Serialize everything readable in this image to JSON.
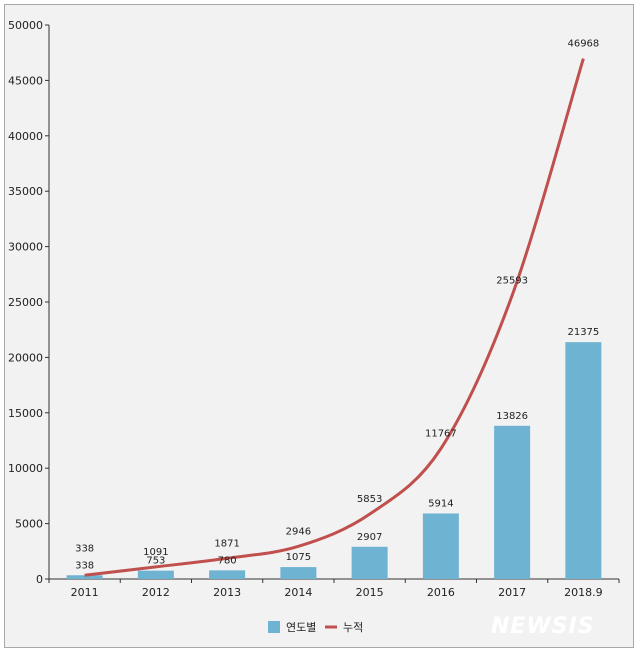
{
  "chart_data": {
    "type": "bar",
    "categories": [
      "2011",
      "2012",
      "2013",
      "2014",
      "2015",
      "2016",
      "2017",
      "2018.9"
    ],
    "series": [
      {
        "name": "연도별",
        "kind": "bar",
        "color": "#6fb3d3",
        "values": [
          338,
          753,
          780,
          1075,
          2907,
          5914,
          13826,
          21375
        ]
      },
      {
        "name": "누적",
        "kind": "line",
        "color": "#c0504d",
        "values": [
          338,
          1091,
          1871,
          2946,
          5853,
          11767,
          25593,
          46968
        ]
      }
    ],
    "ylim": [
      0,
      50000
    ],
    "yticks": [
      0,
      5000,
      10000,
      15000,
      20000,
      25000,
      30000,
      35000,
      40000,
      45000,
      50000
    ],
    "legend_position": "bottom",
    "grid": false
  },
  "watermark": "NEWSIS"
}
